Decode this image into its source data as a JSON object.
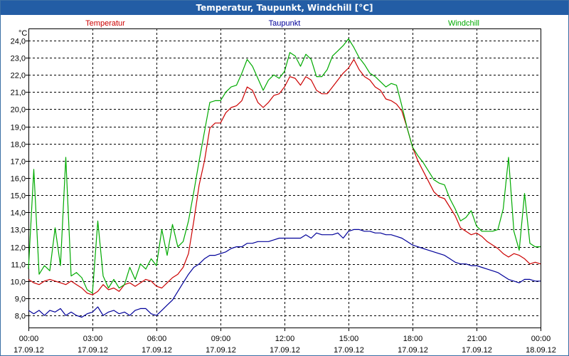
{
  "window": {
    "title": "Temperatur, Taupunkt, Windchill [°C]"
  },
  "chart_data": {
    "type": "line",
    "title": "Temperatur, Taupunkt, Windchill [°C]",
    "ylabel": "°C",
    "xlabel": "",
    "ylim": [
      7.3,
      24.7
    ],
    "y_ticks": [
      "8,0",
      "9,0",
      "10,0",
      "11,0",
      "12,0",
      "13,0",
      "14,0",
      "15,0",
      "16,0",
      "17,0",
      "18,0",
      "19,0",
      "20,0",
      "21,0",
      "22,0",
      "23,0",
      "24,0"
    ],
    "x_ticks": [
      {
        "time": "00:00",
        "date": "17.09.12"
      },
      {
        "time": "03:00",
        "date": "17.09.12"
      },
      {
        "time": "06:00",
        "date": "17.09.12"
      },
      {
        "time": "09:00",
        "date": "17.09.12"
      },
      {
        "time": "12:00",
        "date": "17.09.12"
      },
      {
        "time": "15:00",
        "date": "17.09.12"
      },
      {
        "time": "18:00",
        "date": "17.09.12"
      },
      {
        "time": "21:00",
        "date": "17.09.12"
      },
      {
        "time": "00:00",
        "date": "18.09.12"
      }
    ],
    "x_range_hours": [
      0,
      24
    ],
    "grid": true,
    "series": [
      {
        "name": "Temperatur",
        "color": "#cc0000",
        "x": [
          0,
          0.25,
          0.5,
          0.75,
          1,
          1.25,
          1.5,
          1.75,
          2,
          2.25,
          2.5,
          2.75,
          3,
          3.25,
          3.5,
          3.75,
          4,
          4.25,
          4.5,
          4.75,
          5,
          5.25,
          5.5,
          5.75,
          6,
          6.25,
          6.5,
          6.75,
          7,
          7.25,
          7.5,
          7.75,
          8,
          8.25,
          8.5,
          8.75,
          9,
          9.25,
          9.5,
          9.75,
          10,
          10.25,
          10.5,
          10.75,
          11,
          11.25,
          11.5,
          11.75,
          12,
          12.25,
          12.5,
          12.75,
          13,
          13.25,
          13.5,
          13.75,
          14,
          14.25,
          14.5,
          14.75,
          15,
          15.25,
          15.5,
          15.75,
          16,
          16.25,
          16.5,
          16.75,
          17,
          17.25,
          17.5,
          17.75,
          18,
          18.25,
          18.5,
          18.75,
          19,
          19.25,
          19.5,
          19.75,
          20,
          20.25,
          20.5,
          20.75,
          21,
          21.25,
          21.5,
          21.75,
          22,
          22.25,
          22.5,
          22.75,
          23,
          23.25,
          23.5,
          23.75,
          24
        ],
        "values": [
          10.1,
          9.9,
          9.8,
          10.0,
          10.1,
          10.0,
          9.9,
          9.8,
          10.0,
          9.8,
          9.6,
          9.3,
          9.2,
          9.4,
          9.8,
          9.5,
          9.6,
          9.4,
          9.8,
          9.9,
          9.7,
          9.9,
          10.1,
          10.0,
          9.7,
          9.6,
          9.9,
          10.2,
          10.4,
          10.8,
          11.6,
          13.5,
          15.6,
          17.0,
          18.9,
          19.2,
          19.2,
          19.8,
          20.1,
          20.2,
          20.5,
          21.3,
          21.1,
          20.4,
          20.1,
          20.4,
          20.8,
          20.9,
          21.3,
          21.9,
          21.8,
          21.4,
          21.9,
          21.7,
          21.1,
          20.9,
          20.9,
          21.3,
          21.7,
          22.1,
          22.4,
          22.9,
          22.3,
          21.9,
          21.7,
          21.3,
          21.1,
          20.6,
          20.5,
          20.3,
          19.9,
          18.9,
          17.8,
          17.0,
          16.4,
          15.8,
          15.2,
          14.9,
          14.8,
          14.3,
          13.8,
          13.1,
          12.9,
          12.7,
          12.8,
          12.6,
          12.3,
          12.1,
          11.9,
          11.6,
          11.4,
          11.6,
          11.5,
          11.3,
          11.0,
          11.1,
          11.0
        ]
      },
      {
        "name": "Taupunkt",
        "color": "#000099",
        "x": [
          0,
          0.25,
          0.5,
          0.75,
          1,
          1.25,
          1.5,
          1.75,
          2,
          2.25,
          2.5,
          2.75,
          3,
          3.25,
          3.5,
          3.75,
          4,
          4.25,
          4.5,
          4.75,
          5,
          5.25,
          5.5,
          5.75,
          6,
          6.25,
          6.5,
          6.75,
          7,
          7.25,
          7.5,
          7.75,
          8,
          8.25,
          8.5,
          8.75,
          9,
          9.25,
          9.5,
          9.75,
          10,
          10.25,
          10.5,
          10.75,
          11,
          11.25,
          11.5,
          11.75,
          12,
          12.25,
          12.5,
          12.75,
          13,
          13.25,
          13.5,
          13.75,
          14,
          14.25,
          14.5,
          14.75,
          15,
          15.25,
          15.5,
          15.75,
          16,
          16.25,
          16.5,
          16.75,
          17,
          17.25,
          17.5,
          17.75,
          18,
          18.25,
          18.5,
          18.75,
          19,
          19.25,
          19.5,
          19.75,
          20,
          20.25,
          20.5,
          20.75,
          21,
          21.25,
          21.5,
          21.75,
          22,
          22.25,
          22.5,
          22.75,
          23,
          23.25,
          23.5,
          23.75,
          24
        ],
        "values": [
          8.3,
          8.1,
          8.3,
          8.0,
          8.3,
          8.2,
          8.4,
          8.0,
          8.2,
          8.0,
          7.9,
          8.1,
          8.2,
          8.5,
          8.0,
          8.2,
          8.3,
          8.1,
          8.2,
          8.0,
          8.3,
          8.4,
          8.4,
          8.1,
          8.0,
          8.3,
          8.6,
          8.9,
          9.4,
          9.9,
          10.4,
          10.8,
          11.0,
          11.3,
          11.5,
          11.5,
          11.6,
          11.7,
          11.9,
          12.0,
          12.0,
          12.2,
          12.2,
          12.3,
          12.3,
          12.3,
          12.4,
          12.5,
          12.5,
          12.5,
          12.5,
          12.5,
          12.7,
          12.5,
          12.8,
          12.7,
          12.7,
          12.7,
          12.8,
          12.5,
          12.9,
          13.0,
          13.0,
          12.9,
          12.9,
          12.8,
          12.8,
          12.7,
          12.7,
          12.6,
          12.5,
          12.3,
          12.1,
          12.0,
          11.9,
          11.8,
          11.7,
          11.6,
          11.5,
          11.3,
          11.1,
          11.0,
          11.0,
          10.9,
          10.9,
          10.8,
          10.7,
          10.6,
          10.5,
          10.3,
          10.1,
          10.0,
          9.9,
          10.1,
          10.1,
          10.0,
          10.0
        ]
      },
      {
        "name": "Windchill",
        "color": "#00aa00",
        "x": [
          0,
          0.25,
          0.5,
          0.75,
          1,
          1.25,
          1.5,
          1.75,
          2,
          2.25,
          2.5,
          2.75,
          3,
          3.25,
          3.5,
          3.75,
          4,
          4.25,
          4.5,
          4.75,
          5,
          5.25,
          5.5,
          5.75,
          6,
          6.25,
          6.5,
          6.75,
          7,
          7.25,
          7.5,
          7.75,
          8,
          8.25,
          8.5,
          8.75,
          9,
          9.25,
          9.5,
          9.75,
          10,
          10.25,
          10.5,
          10.75,
          11,
          11.25,
          11.5,
          11.75,
          12,
          12.25,
          12.5,
          12.75,
          13,
          13.25,
          13.5,
          13.75,
          14,
          14.25,
          14.5,
          14.75,
          15,
          15.25,
          15.5,
          15.75,
          16,
          16.25,
          16.5,
          16.75,
          17,
          17.25,
          17.5,
          17.75,
          18,
          18.25,
          18.5,
          18.75,
          19,
          19.25,
          19.5,
          19.75,
          20,
          20.25,
          20.5,
          20.75,
          21,
          21.25,
          21.5,
          21.75,
          22,
          22.25,
          22.5,
          22.75,
          23,
          23.25,
          23.5,
          23.75,
          24
        ],
        "values": [
          10.7,
          16.5,
          10.4,
          10.9,
          10.6,
          13.1,
          10.9,
          17.2,
          10.3,
          10.5,
          10.2,
          9.5,
          9.3,
          13.5,
          10.3,
          9.6,
          10.1,
          9.6,
          9.8,
          10.8,
          10.1,
          11.0,
          10.7,
          11.3,
          10.9,
          13.0,
          11.5,
          13.3,
          12.0,
          12.3,
          13.5,
          15.2,
          17.0,
          18.7,
          20.4,
          20.5,
          20.5,
          21.0,
          21.3,
          21.4,
          22.1,
          22.9,
          22.5,
          21.8,
          21.1,
          21.7,
          22.0,
          21.8,
          22.2,
          23.3,
          23.1,
          22.5,
          23.2,
          22.9,
          21.9,
          21.9,
          22.3,
          23.1,
          23.4,
          23.7,
          24.1,
          23.6,
          23.0,
          22.6,
          22.1,
          21.9,
          21.6,
          21.3,
          21.5,
          21.4,
          20.2,
          18.9,
          17.8,
          17.3,
          16.9,
          16.4,
          15.9,
          15.7,
          15.6,
          14.8,
          14.2,
          13.5,
          13.7,
          14.1,
          13.2,
          12.9,
          12.9,
          12.9,
          13.0,
          14.2,
          17.2,
          12.9,
          11.8,
          15.1,
          12.2,
          12.0,
          12.0
        ]
      }
    ]
  }
}
